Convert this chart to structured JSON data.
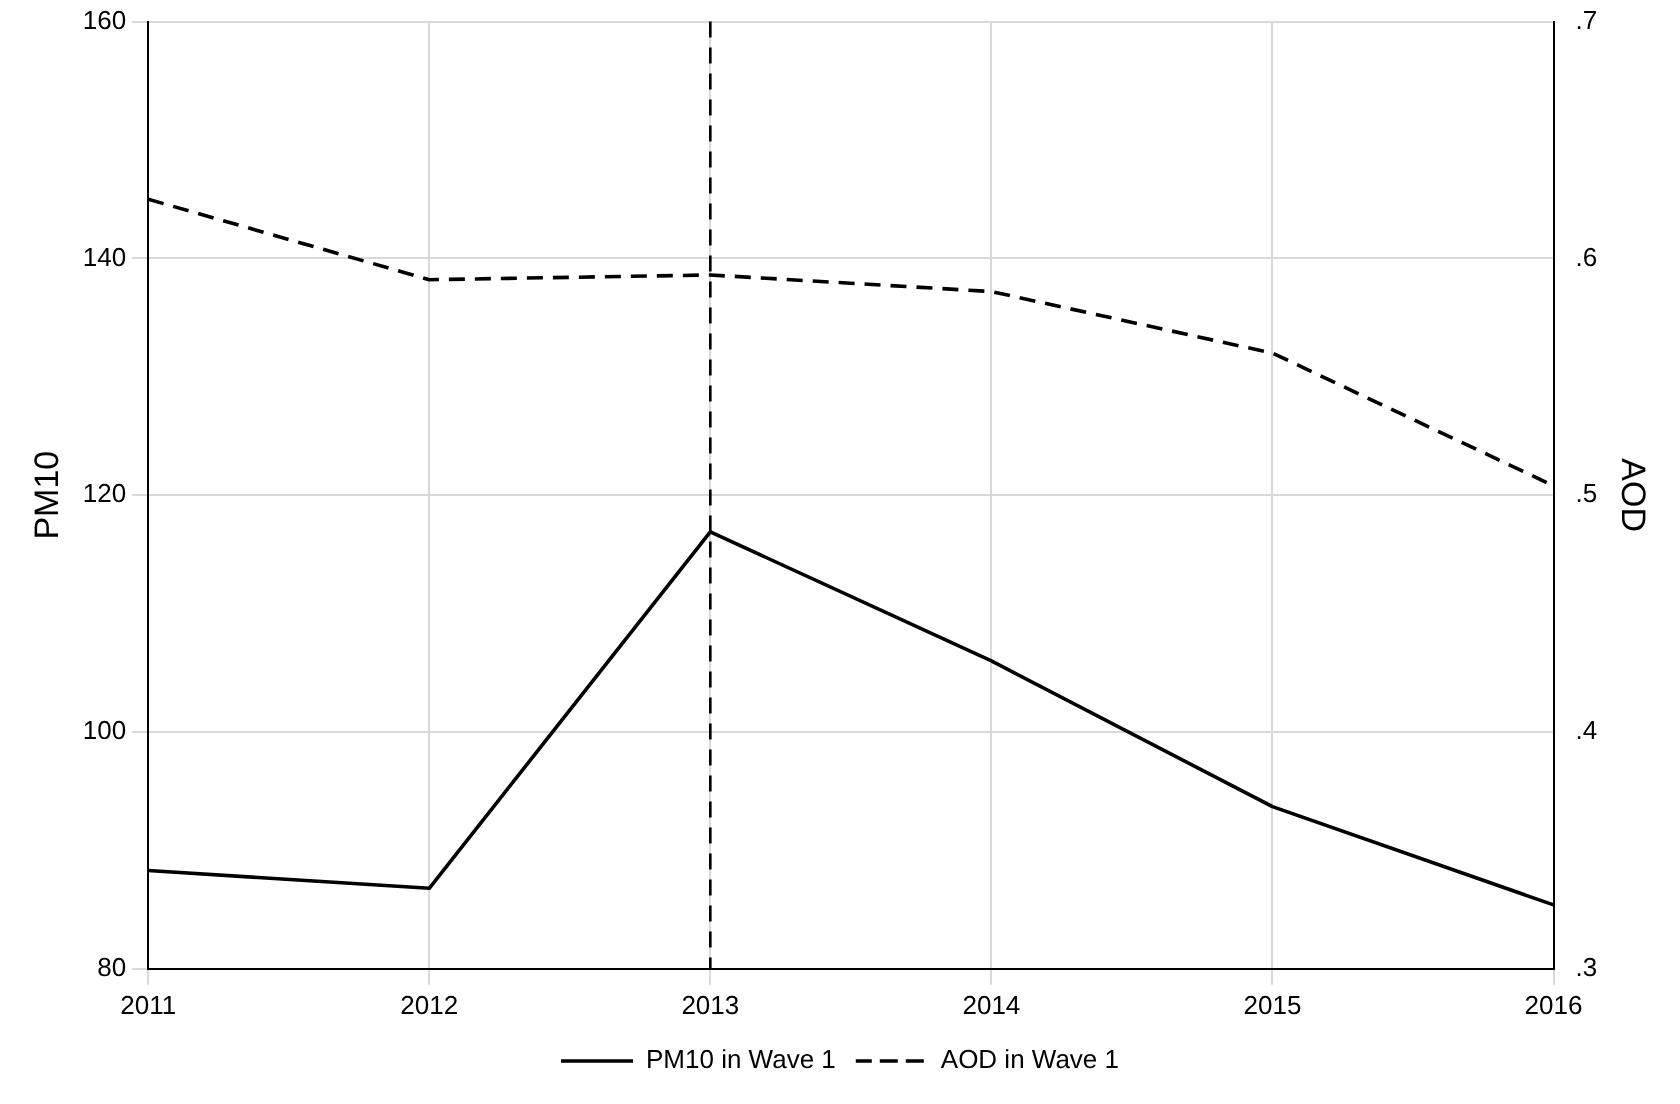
{
  "chart_data": {
    "type": "line",
    "x": [
      2011,
      2012,
      2013,
      2014,
      2015,
      2016
    ],
    "series": [
      {
        "name": "PM10 in Wave 1",
        "color": "#000000",
        "line_style": "solid",
        "values": [
          88.3,
          86.8,
          116.9,
          106,
          93.7,
          85.4
        ]
      },
      {
        "name": "AOD in Wave 1",
        "color": "#000000",
        "line_style": "dashed",
        "axis": "y2",
        "values": [
          0.625,
          0.591,
          0.593,
          0.586,
          0.56,
          0.504
        ]
      }
    ],
    "xlim": [
      2011,
      2016
    ],
    "xticks": [
      2011,
      2012,
      2013,
      2014,
      2015,
      2016
    ],
    "ylim": [
      80,
      160
    ],
    "yticks": [
      80,
      100,
      120,
      140,
      160
    ],
    "y2lim": [
      0.3,
      0.7
    ],
    "y2ticks": [
      {
        "value": 0.3,
        "label": ".3"
      },
      {
        "value": 0.4,
        "label": ".4"
      },
      {
        "value": 0.5,
        "label": ".5"
      },
      {
        "value": 0.6,
        "label": ".6"
      },
      {
        "value": 0.7,
        "label": ".7"
      }
    ],
    "ylabel": "PM10",
    "y2label": "AOD",
    "grid": true,
    "legend": "bottom",
    "marker": "none",
    "ref_lines": [
      {
        "axis": "x",
        "value": 2013,
        "label": null,
        "line_style": "dashed",
        "color": "#000000"
      }
    ]
  }
}
